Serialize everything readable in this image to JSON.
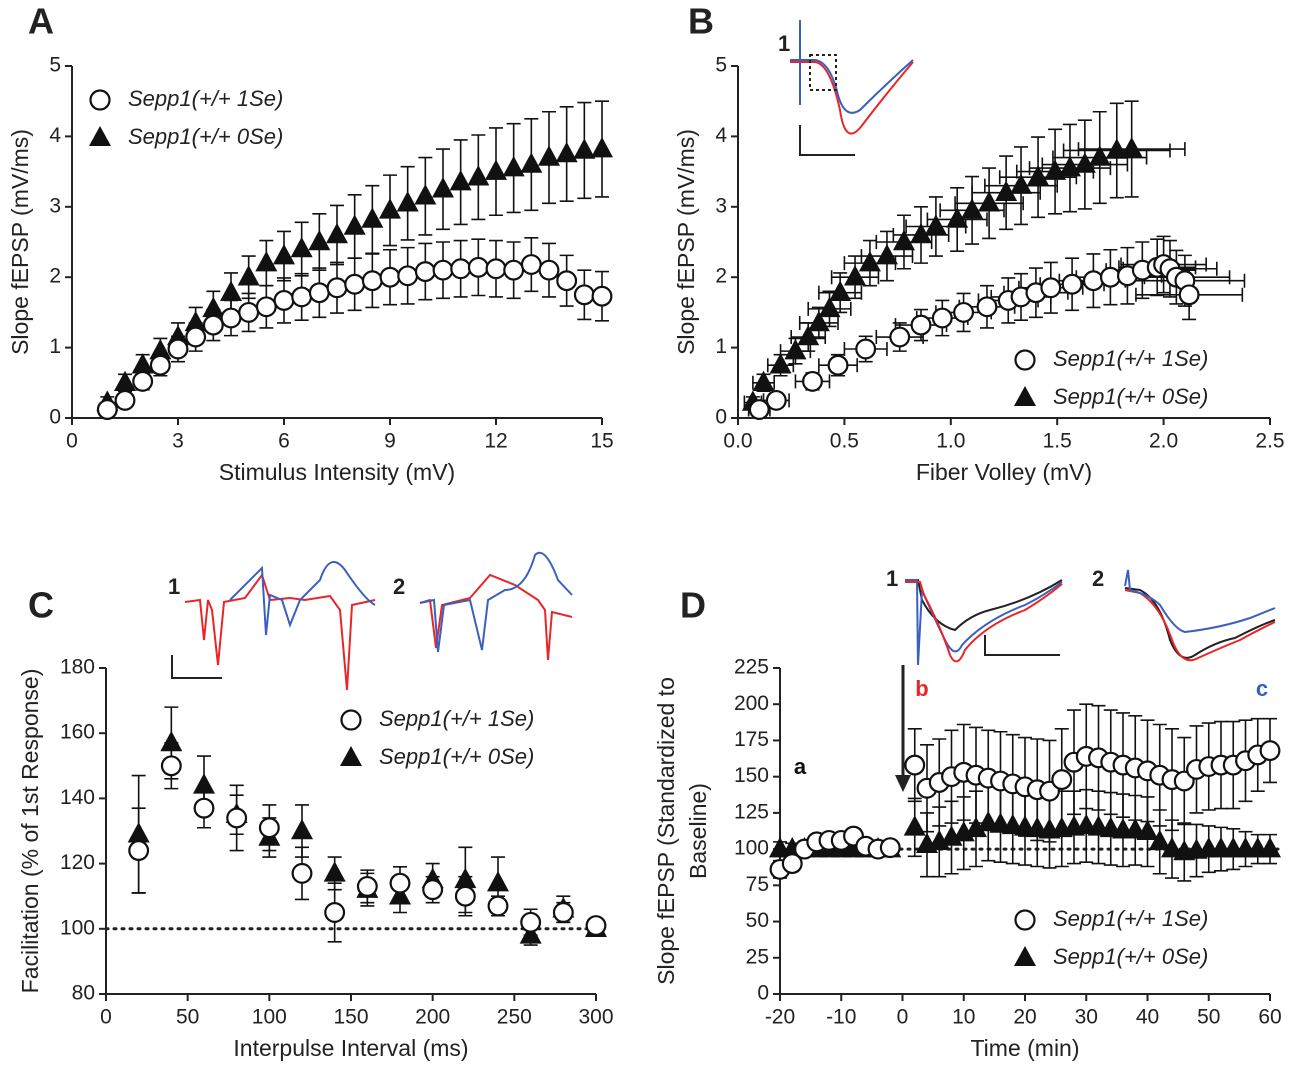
{
  "chart_data": [
    {
      "type": "scatter",
      "label": "A",
      "xlabel": "Stimulus Intensity (mV)",
      "ylabel": [
        "Slope fEPSP (mV/ms)"
      ],
      "xlim": [
        0,
        15
      ],
      "xticks": [
        0,
        3,
        6,
        9,
        12,
        15
      ],
      "ylim": [
        0,
        5
      ],
      "yticks": [
        0,
        1,
        2,
        3,
        4,
        5
      ],
      "legend": "upper left",
      "x": [
        1,
        1.5,
        2,
        2.5,
        3,
        3.5,
        4,
        4.5,
        5,
        5.5,
        6,
        6.5,
        7,
        7.5,
        8,
        8.5,
        9,
        9.5,
        10,
        10.5,
        11,
        11.5,
        12,
        12.5,
        13,
        13.5,
        14,
        14.5,
        15
      ],
      "series": [
        {
          "name": "Sepp1(+/+ 1Se)",
          "marker": "open-circle",
          "color": "#111111",
          "values": [
            0.12,
            0.25,
            0.52,
            0.75,
            0.98,
            1.15,
            1.32,
            1.42,
            1.5,
            1.58,
            1.67,
            1.72,
            1.78,
            1.85,
            1.9,
            1.95,
            2.0,
            2.02,
            2.08,
            2.1,
            2.12,
            2.14,
            2.12,
            2.1,
            2.18,
            2.1,
            1.95,
            1.75,
            1.73
          ],
          "errors": [
            0.05,
            0.08,
            0.12,
            0.15,
            0.18,
            0.2,
            0.22,
            0.25,
            0.27,
            0.3,
            0.32,
            0.33,
            0.35,
            0.36,
            0.37,
            0.38,
            0.39,
            0.4,
            0.4,
            0.4,
            0.4,
            0.4,
            0.4,
            0.4,
            0.38,
            0.38,
            0.36,
            0.35,
            0.35
          ]
        },
        {
          "name": "Sepp1(+/+ 0Se)",
          "marker": "triangle",
          "color": "#111111",
          "values": [
            0.22,
            0.5,
            0.75,
            0.95,
            1.15,
            1.35,
            1.55,
            1.78,
            2.0,
            2.2,
            2.3,
            2.4,
            2.5,
            2.6,
            2.72,
            2.82,
            2.95,
            3.05,
            3.15,
            3.25,
            3.35,
            3.42,
            3.5,
            3.55,
            3.6,
            3.7,
            3.75,
            3.8,
            3.82
          ],
          "errors": [
            0.08,
            0.12,
            0.15,
            0.18,
            0.2,
            0.22,
            0.25,
            0.28,
            0.3,
            0.32,
            0.35,
            0.38,
            0.4,
            0.42,
            0.45,
            0.48,
            0.5,
            0.52,
            0.55,
            0.57,
            0.6,
            0.6,
            0.62,
            0.63,
            0.65,
            0.65,
            0.67,
            0.68,
            0.68
          ]
        }
      ]
    },
    {
      "type": "scatter",
      "label": "B",
      "xlabel": "Fiber Volley (mV)",
      "ylabel": [
        "Slope fEPSP (mV/ms)"
      ],
      "xlim": [
        0,
        2.5
      ],
      "xticks": [
        {
          "value": 0,
          "label": "0.0"
        },
        0.5,
        {
          "value": 1,
          "label": "1.0"
        },
        1.5,
        {
          "value": 2,
          "label": "2.0"
        },
        2.5
      ],
      "ylim": [
        0,
        5
      ],
      "yticks": [
        0,
        1,
        2,
        3,
        4,
        5
      ],
      "legend": "lower right",
      "insets": [
        "1"
      ],
      "series": [
        {
          "name": "Sepp1(+/+ 1Se)",
          "marker": "open-circle",
          "color": "#111111",
          "x": [
            0.1,
            0.18,
            0.35,
            0.47,
            0.6,
            0.76,
            0.86,
            0.96,
            1.06,
            1.17,
            1.27,
            1.33,
            1.4,
            1.47,
            1.57,
            1.67,
            1.75,
            1.83,
            1.9,
            1.97,
            2.0,
            2.03,
            2.06,
            2.1,
            2.12
          ],
          "xerr": [
            0.05,
            0.06,
            0.08,
            0.09,
            0.1,
            0.11,
            0.12,
            0.12,
            0.13,
            0.13,
            0.14,
            0.14,
            0.15,
            0.15,
            0.15,
            0.16,
            0.16,
            0.16,
            0.17,
            0.18,
            0.2,
            0.22,
            0.25,
            0.28,
            0.25
          ],
          "values": [
            0.12,
            0.25,
            0.52,
            0.75,
            0.98,
            1.15,
            1.32,
            1.42,
            1.5,
            1.58,
            1.67,
            1.72,
            1.78,
            1.85,
            1.9,
            1.95,
            2.0,
            2.02,
            2.1,
            2.14,
            2.18,
            2.12,
            2.0,
            1.95,
            1.75
          ],
          "errors": [
            0.05,
            0.08,
            0.12,
            0.15,
            0.18,
            0.2,
            0.22,
            0.25,
            0.27,
            0.3,
            0.32,
            0.33,
            0.35,
            0.36,
            0.37,
            0.38,
            0.39,
            0.4,
            0.4,
            0.4,
            0.4,
            0.4,
            0.38,
            0.36,
            0.35
          ]
        },
        {
          "name": "Sepp1(+/+ 0Se)",
          "marker": "triangle",
          "color": "#111111",
          "x": [
            0.07,
            0.12,
            0.2,
            0.27,
            0.33,
            0.38,
            0.43,
            0.48,
            0.55,
            0.62,
            0.7,
            0.78,
            0.86,
            0.93,
            1.03,
            1.1,
            1.18,
            1.26,
            1.33,
            1.41,
            1.49,
            1.56,
            1.63,
            1.7,
            1.78,
            1.85
          ],
          "xerr": [
            0.04,
            0.05,
            0.06,
            0.07,
            0.08,
            0.09,
            0.1,
            0.1,
            0.11,
            0.12,
            0.12,
            0.13,
            0.13,
            0.14,
            0.14,
            0.15,
            0.16,
            0.16,
            0.17,
            0.18,
            0.18,
            0.19,
            0.2,
            0.22,
            0.25,
            0.25
          ],
          "values": [
            0.22,
            0.5,
            0.75,
            0.95,
            1.15,
            1.35,
            1.55,
            1.78,
            2.0,
            2.2,
            2.3,
            2.5,
            2.6,
            2.72,
            2.82,
            2.95,
            3.05,
            3.2,
            3.3,
            3.42,
            3.5,
            3.55,
            3.6,
            3.7,
            3.8,
            3.82
          ],
          "errors": [
            0.08,
            0.12,
            0.15,
            0.18,
            0.2,
            0.22,
            0.25,
            0.28,
            0.3,
            0.32,
            0.35,
            0.38,
            0.4,
            0.42,
            0.45,
            0.48,
            0.5,
            0.52,
            0.55,
            0.57,
            0.6,
            0.62,
            0.63,
            0.65,
            0.67,
            0.68
          ]
        }
      ]
    },
    {
      "type": "scatter",
      "label": "C",
      "xlabel": "Interpulse Interval  (ms)",
      "ylabel": [
        "Facilitation (% of 1st Response)"
      ],
      "xlim": [
        0,
        300
      ],
      "xticks": [
        0,
        50,
        100,
        150,
        200,
        250,
        300
      ],
      "ylim": [
        80,
        180
      ],
      "yticks": [
        80,
        100,
        120,
        140,
        160,
        180
      ],
      "legend": "upper right",
      "refline": 100,
      "insets": [
        "1",
        "2"
      ],
      "x": [
        20,
        40,
        60,
        80,
        100,
        120,
        140,
        160,
        180,
        200,
        220,
        240,
        260,
        280,
        300
      ],
      "series": [
        {
          "name": "Sepp1(+/+ 1Se)",
          "marker": "open-circle",
          "color": "#111111",
          "values": [
            124,
            150,
            137,
            134,
            131,
            117,
            105,
            113,
            114,
            112,
            110,
            107,
            102,
            105,
            101
          ],
          "errors": [
            13,
            7,
            6,
            10,
            7,
            8,
            9,
            5,
            5,
            4,
            6,
            3,
            4,
            3,
            2
          ]
        },
        {
          "name": "Sepp1(+/+ 0Se)",
          "marker": "triangle",
          "color": "#111111",
          "values": [
            129,
            157,
            144,
            135,
            128,
            130,
            117,
            112,
            110,
            115,
            115,
            114,
            98,
            106,
            100
          ],
          "errors": [
            18,
            11,
            9,
            6,
            6,
            8,
            5,
            5,
            5,
            5,
            10,
            8,
            3,
            4,
            2
          ]
        }
      ]
    },
    {
      "type": "scatter",
      "label": "D",
      "xlabel": "Time (min)",
      "ylabel": [
        "Slope fEPSP (Standardized to",
        "Baseline)"
      ],
      "xlim": [
        -20,
        60
      ],
      "xticks": [
        -20,
        -10,
        0,
        10,
        20,
        30,
        40,
        50,
        60
      ],
      "ylim": [
        0,
        225
      ],
      "yticks": [
        0,
        25,
        50,
        75,
        100,
        125,
        150,
        175,
        200,
        225
      ],
      "legend": "lower right",
      "refline": 100,
      "insets": [
        "1",
        "2"
      ],
      "annotations": [
        {
          "text": "a",
          "color": "#111111"
        },
        {
          "text": "b",
          "color": "#e8262a"
        },
        {
          "text": "c",
          "color": "#3b5fc0"
        }
      ],
      "x": [
        -20,
        -18,
        -16,
        -14,
        -12,
        -10,
        -8,
        -6,
        -4,
        -2,
        2,
        4,
        6,
        8,
        10,
        12,
        14,
        16,
        18,
        20,
        22,
        24,
        26,
        28,
        30,
        32,
        34,
        36,
        38,
        40,
        42,
        44,
        46,
        48,
        50,
        52,
        54,
        56,
        58,
        60
      ],
      "series": [
        {
          "name": "Sepp1(+/+ 1Se)",
          "marker": "open-circle",
          "color": "#111111",
          "values": [
            86,
            90,
            100,
            105,
            106,
            106,
            109,
            102,
            100,
            101,
            158,
            142,
            146,
            150,
            153,
            151,
            149,
            147,
            145,
            143,
            141,
            140,
            148,
            160,
            164,
            163,
            160,
            158,
            156,
            154,
            151,
            148,
            147,
            155,
            157,
            158,
            158,
            161,
            165,
            168
          ],
          "errors": [
            6,
            5,
            4,
            4,
            4,
            4,
            5,
            4,
            4,
            4,
            25,
            30,
            30,
            32,
            33,
            33,
            33,
            34,
            34,
            34,
            35,
            35,
            35,
            36,
            36,
            36,
            36,
            36,
            36,
            35,
            35,
            35,
            30,
            30,
            30,
            30,
            30,
            28,
            25,
            22
          ]
        },
        {
          "name": "Sepp1(+/+ 0Se)",
          "marker": "triangle",
          "color": "#111111",
          "values": [
            100,
            100,
            100,
            100,
            100,
            100,
            100,
            100,
            100,
            100,
            115,
            103,
            105,
            108,
            111,
            114,
            118,
            117,
            116,
            115,
            114,
            113,
            114,
            115,
            116,
            115,
            114,
            113,
            113,
            112,
            105,
            100,
            98,
            99,
            100,
            100,
            100,
            100,
            100,
            100
          ],
          "errors": [
            5,
            4,
            4,
            4,
            4,
            4,
            4,
            4,
            4,
            4,
            20,
            22,
            24,
            25,
            25,
            26,
            26,
            26,
            26,
            26,
            26,
            26,
            26,
            25,
            25,
            25,
            25,
            25,
            24,
            24,
            22,
            20,
            20,
            18,
            16,
            15,
            14,
            12,
            10,
            10
          ]
        }
      ]
    }
  ]
}
